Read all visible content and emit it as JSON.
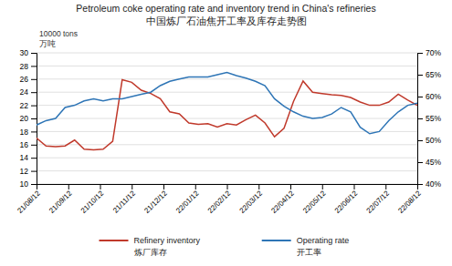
{
  "chart_data": {
    "type": "line",
    "title": "Petroleum coke operating rate and inventory trend in China's refineries",
    "subtitle": "中国炼厂石油焦开工率及库存走势图",
    "ylabel": [
      "10000 tons",
      "万吨"
    ],
    "x": [
      0,
      0.3,
      0.6,
      0.9,
      1.2,
      1.5,
      1.8,
      2.1,
      2.4,
      2.7,
      3,
      3.3,
      3.6,
      3.9,
      4.2,
      4.5,
      4.8,
      5.1,
      5.4,
      5.7,
      6,
      6.3,
      6.6,
      6.9,
      7.2,
      7.5,
      7.8,
      8.1,
      8.4,
      8.7,
      9,
      9.3,
      9.6,
      9.9,
      10.2,
      10.5,
      10.8,
      11.1,
      11.4,
      11.7,
      12
    ],
    "xlim": [
      0,
      12
    ],
    "xticks": [
      {
        "value": 0,
        "label": "21/08/12"
      },
      {
        "value": 1,
        "label": "21/09/12"
      },
      {
        "value": 2,
        "label": "21/10/12"
      },
      {
        "value": 3,
        "label": "21/11/12"
      },
      {
        "value": 4,
        "label": "21/12/12"
      },
      {
        "value": 5,
        "label": "22/01/12"
      },
      {
        "value": 6,
        "label": "22/02/12"
      },
      {
        "value": 7,
        "label": "22/03/12"
      },
      {
        "value": 8,
        "label": "22/04/12"
      },
      {
        "value": 9,
        "label": "22/05/12"
      },
      {
        "value": 10,
        "label": "22/06/12"
      },
      {
        "value": 11,
        "label": "22/07/12"
      },
      {
        "value": 12,
        "label": "22/08/12"
      }
    ],
    "ylim": [
      10,
      30
    ],
    "yticks": [
      10,
      12,
      14,
      16,
      18,
      20,
      22,
      24,
      26,
      28,
      30
    ],
    "y2lim": [
      40,
      70
    ],
    "y2ticks": [
      {
        "value": 40,
        "label": "40%"
      },
      {
        "value": 45,
        "label": "45%"
      },
      {
        "value": 50,
        "label": "50%"
      },
      {
        "value": 55,
        "label": "55%"
      },
      {
        "value": 60,
        "label": "60%"
      },
      {
        "value": 65,
        "label": "65%"
      },
      {
        "value": 70,
        "label": "70%"
      }
    ],
    "grid": true,
    "legend": "bottom",
    "series": [
      {
        "name": [
          "Refinery inventory",
          "炼厂库存"
        ],
        "color": "#c0392b",
        "values": [
          17.0,
          15.8,
          15.7,
          15.8,
          16.7,
          15.3,
          15.2,
          15.3,
          16.5,
          25.9,
          25.5,
          24.3,
          23.8,
          23.0,
          21.0,
          20.7,
          19.3,
          19.1,
          19.2,
          18.7,
          19.2,
          19.0,
          19.8,
          20.5,
          19.3,
          17.2,
          18.5,
          22.6,
          25.7,
          24.0,
          23.8,
          23.6,
          23.5,
          23.2,
          22.5,
          22.0,
          22.0,
          22.5,
          23.7,
          22.8,
          22.0
        ]
      },
      {
        "name": [
          "Operating rate",
          "开工率"
        ],
        "color": "#2e75b6",
        "axis": "y2",
        "values": [
          53.5,
          54.5,
          55.0,
          57.5,
          58.0,
          59.0,
          59.5,
          59.0,
          59.5,
          59.5,
          60.0,
          60.5,
          61.0,
          62.5,
          63.5,
          64.0,
          64.5,
          64.5,
          64.5,
          65.0,
          65.5,
          64.8,
          64.2,
          63.5,
          62.5,
          59.5,
          57.8,
          56.5,
          55.5,
          55.0,
          55.2,
          56.0,
          57.5,
          56.5,
          53.0,
          51.5,
          52.0,
          54.5,
          56.5,
          58.0,
          58.5
        ]
      }
    ]
  }
}
